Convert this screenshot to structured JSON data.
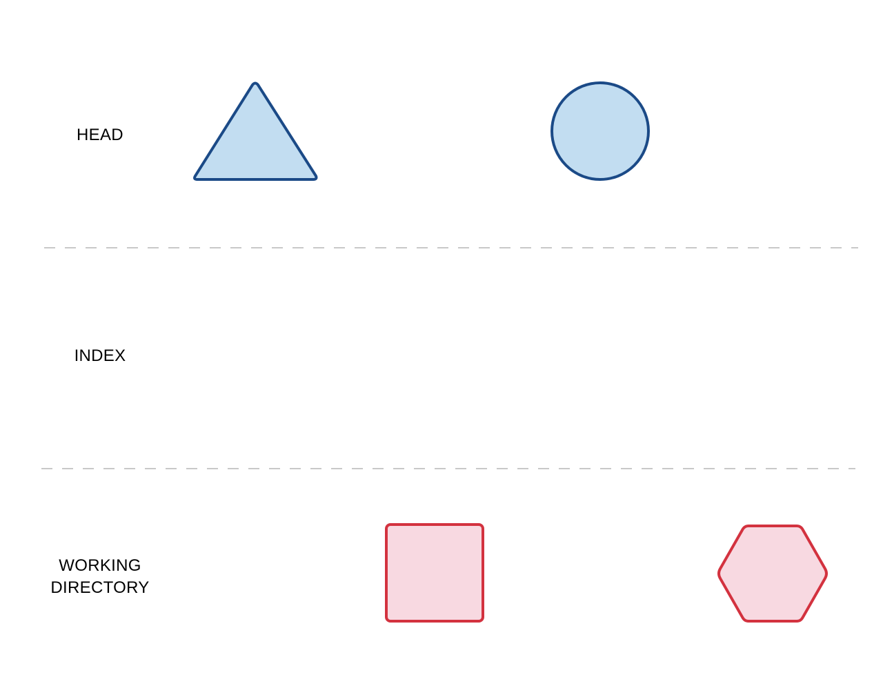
{
  "rows": {
    "head": {
      "label": "HEAD"
    },
    "index": {
      "label": "INDEX"
    },
    "working_directory": {
      "line1": "WORKING",
      "line2": "DIRECTORY"
    }
  },
  "shapes": [
    {
      "row": "head",
      "shape": "triangle",
      "fill": "#c2ddf1",
      "stroke": "#1b4a87"
    },
    {
      "row": "head",
      "shape": "circle",
      "fill": "#c2ddf1",
      "stroke": "#1b4a87"
    },
    {
      "row": "working_directory",
      "shape": "square",
      "fill": "#f8d9e1",
      "stroke": "#d3323f"
    },
    {
      "row": "working_directory",
      "shape": "hexagon",
      "fill": "#f8d9e1",
      "stroke": "#d3323f"
    }
  ],
  "divider_color": "#c8c8c8"
}
